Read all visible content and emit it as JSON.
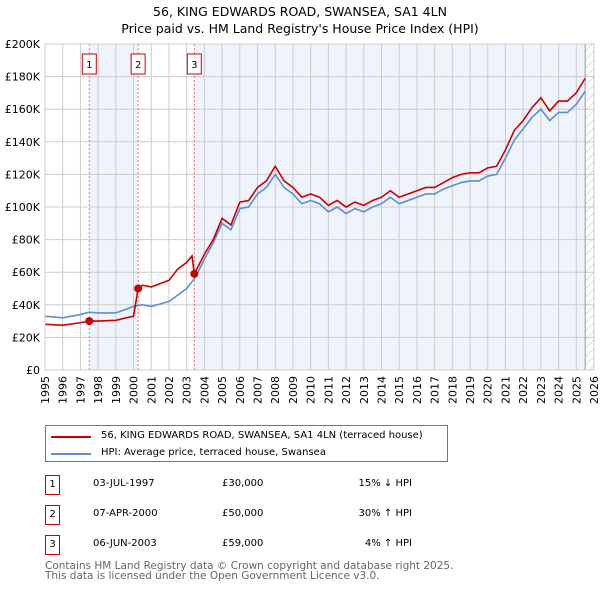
{
  "chart_data": {
    "type": "line",
    "title": "56, KING EDWARDS ROAD, SWANSEA, SA1 4LN",
    "subtitle": "Price paid vs. HM Land Registry's House Price Index (HPI)",
    "xlim": [
      1995,
      2026
    ],
    "ylim": [
      0,
      200000
    ],
    "yticks": [
      {
        "v": 0,
        "l": "£0"
      },
      {
        "v": 20000,
        "l": "£20K"
      },
      {
        "v": 40000,
        "l": "£40K"
      },
      {
        "v": 60000,
        "l": "£60K"
      },
      {
        "v": 80000,
        "l": "£80K"
      },
      {
        "v": 100000,
        "l": "£100K"
      },
      {
        "v": 120000,
        "l": "£120K"
      },
      {
        "v": 140000,
        "l": "£140K"
      },
      {
        "v": 160000,
        "l": "£160K"
      },
      {
        "v": 180000,
        "l": "£180K"
      },
      {
        "v": 200000,
        "l": "£200K"
      }
    ],
    "xticks": [
      "1995",
      "1996",
      "1997",
      "1998",
      "1999",
      "2000",
      "2001",
      "2002",
      "2003",
      "2004",
      "2005",
      "2006",
      "2007",
      "2008",
      "2009",
      "2010",
      "2011",
      "2012",
      "2013",
      "2014",
      "2015",
      "2016",
      "2017",
      "2018",
      "2019",
      "2020",
      "2021",
      "2022",
      "2023",
      "2024",
      "2025",
      "2026"
    ],
    "series": [
      {
        "name": "56, KING EDWARDS ROAD, SWANSEA, SA1 4LN (terraced house)",
        "color": "#cc0000",
        "x": [
          1995,
          1996,
          1997,
          1997.5,
          1998,
          1999,
          2000,
          2000.26,
          2000.5,
          2001,
          2002,
          2002.5,
          2003,
          2003.3,
          2003.43,
          2004,
          2004.5,
          2005,
          2005.5,
          2006,
          2006.5,
          2007,
          2007.5,
          2008,
          2008.5,
          2009,
          2009.5,
          2010,
          2010.5,
          2011,
          2011.5,
          2012,
          2012.5,
          2013,
          2013.5,
          2014,
          2014.5,
          2015,
          2015.5,
          2016,
          2016.5,
          2017,
          2017.5,
          2018,
          2018.5,
          2019,
          2019.5,
          2020,
          2020.5,
          2021,
          2021.5,
          2022,
          2022.5,
          2023,
          2023.5,
          2024,
          2024.5,
          2025,
          2025.5
        ],
        "y": [
          28,
          27.5,
          29,
          30,
          30,
          30.5,
          33,
          50,
          52,
          51,
          55,
          62,
          66,
          70,
          59,
          71,
          80,
          93,
          89,
          103,
          104,
          112,
          116,
          125,
          116,
          112,
          106,
          108,
          106,
          101,
          104,
          100,
          103,
          101,
          104,
          106,
          110,
          106,
          108,
          110,
          112,
          112,
          115,
          118,
          120,
          121,
          121,
          124,
          125,
          135,
          147,
          153,
          161,
          167,
          159,
          165,
          165,
          170,
          179
        ]
      },
      {
        "name": "HPI: Average price, terraced house, Swansea",
        "color": "#5b8fd4",
        "x": [
          1995,
          1996,
          1997,
          1997.5,
          1998,
          1999,
          2000,
          2000.5,
          2001,
          2002,
          2003,
          2003.5,
          2004,
          2004.5,
          2005,
          2005.5,
          2006,
          2006.5,
          2007,
          2007.5,
          2008,
          2008.5,
          2009,
          2009.5,
          2010,
          2010.5,
          2011,
          2011.5,
          2012,
          2012.5,
          2013,
          2013.5,
          2014,
          2014.5,
          2015,
          2015.5,
          2016,
          2016.5,
          2017,
          2017.5,
          2018,
          2018.5,
          2019,
          2019.5,
          2020,
          2020.5,
          2021,
          2021.5,
          2022,
          2022.5,
          2023,
          2023.5,
          2024,
          2024.5,
          2025,
          2025.5
        ],
        "y": [
          33,
          32,
          34,
          35.5,
          35,
          35,
          39,
          40,
          39,
          42,
          50,
          57,
          68,
          78,
          90,
          86,
          99,
          100,
          108,
          112,
          120,
          112,
          108,
          102,
          104,
          102,
          97,
          100,
          96,
          99,
          97,
          100,
          102,
          106,
          102,
          104,
          106,
          108,
          108,
          111,
          113,
          115,
          116,
          116,
          119,
          120,
          130,
          141,
          148,
          155,
          160,
          153,
          158,
          158,
          163,
          171
        ]
      }
    ],
    "y_units": "thousands GBP",
    "sales": [
      {
        "n": "1",
        "x": 1997.5,
        "y": 30
      },
      {
        "n": "2",
        "x": 2000.26,
        "y": 50
      },
      {
        "n": "3",
        "x": 2003.43,
        "y": 59
      }
    ],
    "legend_position": "below"
  },
  "legend": [
    "56, KING EDWARDS ROAD, SWANSEA, SA1 4LN (terraced house)",
    "HPI: Average price, terraced house, Swansea"
  ],
  "table": [
    {
      "n": "1",
      "date": "03-JUL-1997",
      "price": "£30,000",
      "hpi": "15% ↓ HPI"
    },
    {
      "n": "2",
      "date": "07-APR-2000",
      "price": "£50,000",
      "hpi": "30% ↑ HPI"
    },
    {
      "n": "3",
      "date": "06-JUN-2003",
      "price": "£59,000",
      "hpi": "4% ↑ HPI"
    }
  ],
  "footer": [
    "Contains HM Land Registry data © Crown copyright and database right 2025.",
    "This data is licensed under the Open Government Licence v3.0."
  ]
}
